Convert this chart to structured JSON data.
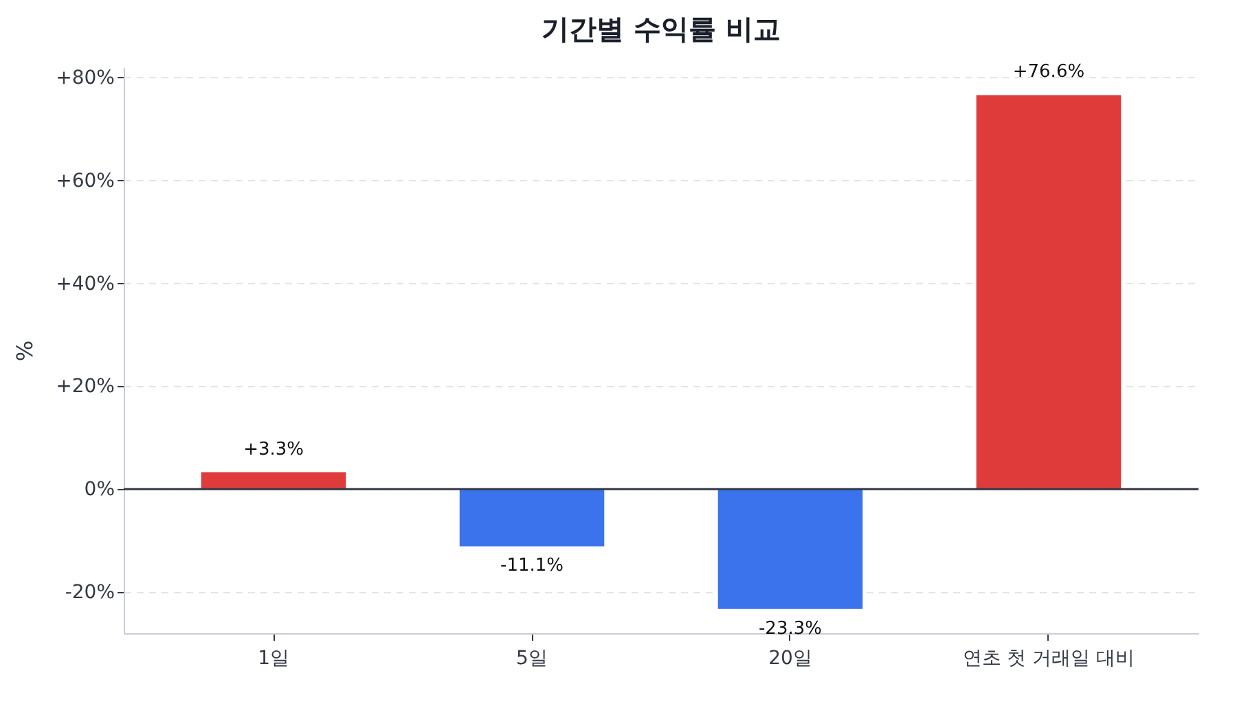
{
  "chart_data": {
    "type": "bar",
    "title": "기간별 수익률 비교",
    "ylabel": "%",
    "categories": [
      "1일",
      "5일",
      "20일",
      "연초 첫 거래일 대비"
    ],
    "values": [
      3.3,
      -11.1,
      -23.3,
      76.6
    ],
    "colors": [
      "#e03b3b",
      "#3b73ed",
      "#3b73ed",
      "#e03b3b"
    ],
    "value_labels": [
      "+3.3%",
      "-11.1%",
      "-23.3%",
      "+76.6%"
    ],
    "ylim": [
      -28,
      82
    ],
    "yticks": [
      {
        "value": -20,
        "label": "-20%"
      },
      {
        "value": 0,
        "label": "0%"
      },
      {
        "value": 20,
        "label": "+20%"
      },
      {
        "value": 40,
        "label": "+40%"
      },
      {
        "value": 60,
        "label": "+60%"
      },
      {
        "value": 80,
        "label": "+80%"
      }
    ],
    "ref_lines": [
      {
        "axis": "y",
        "value": 0,
        "color": "#333a45"
      }
    ],
    "grid": "y"
  }
}
